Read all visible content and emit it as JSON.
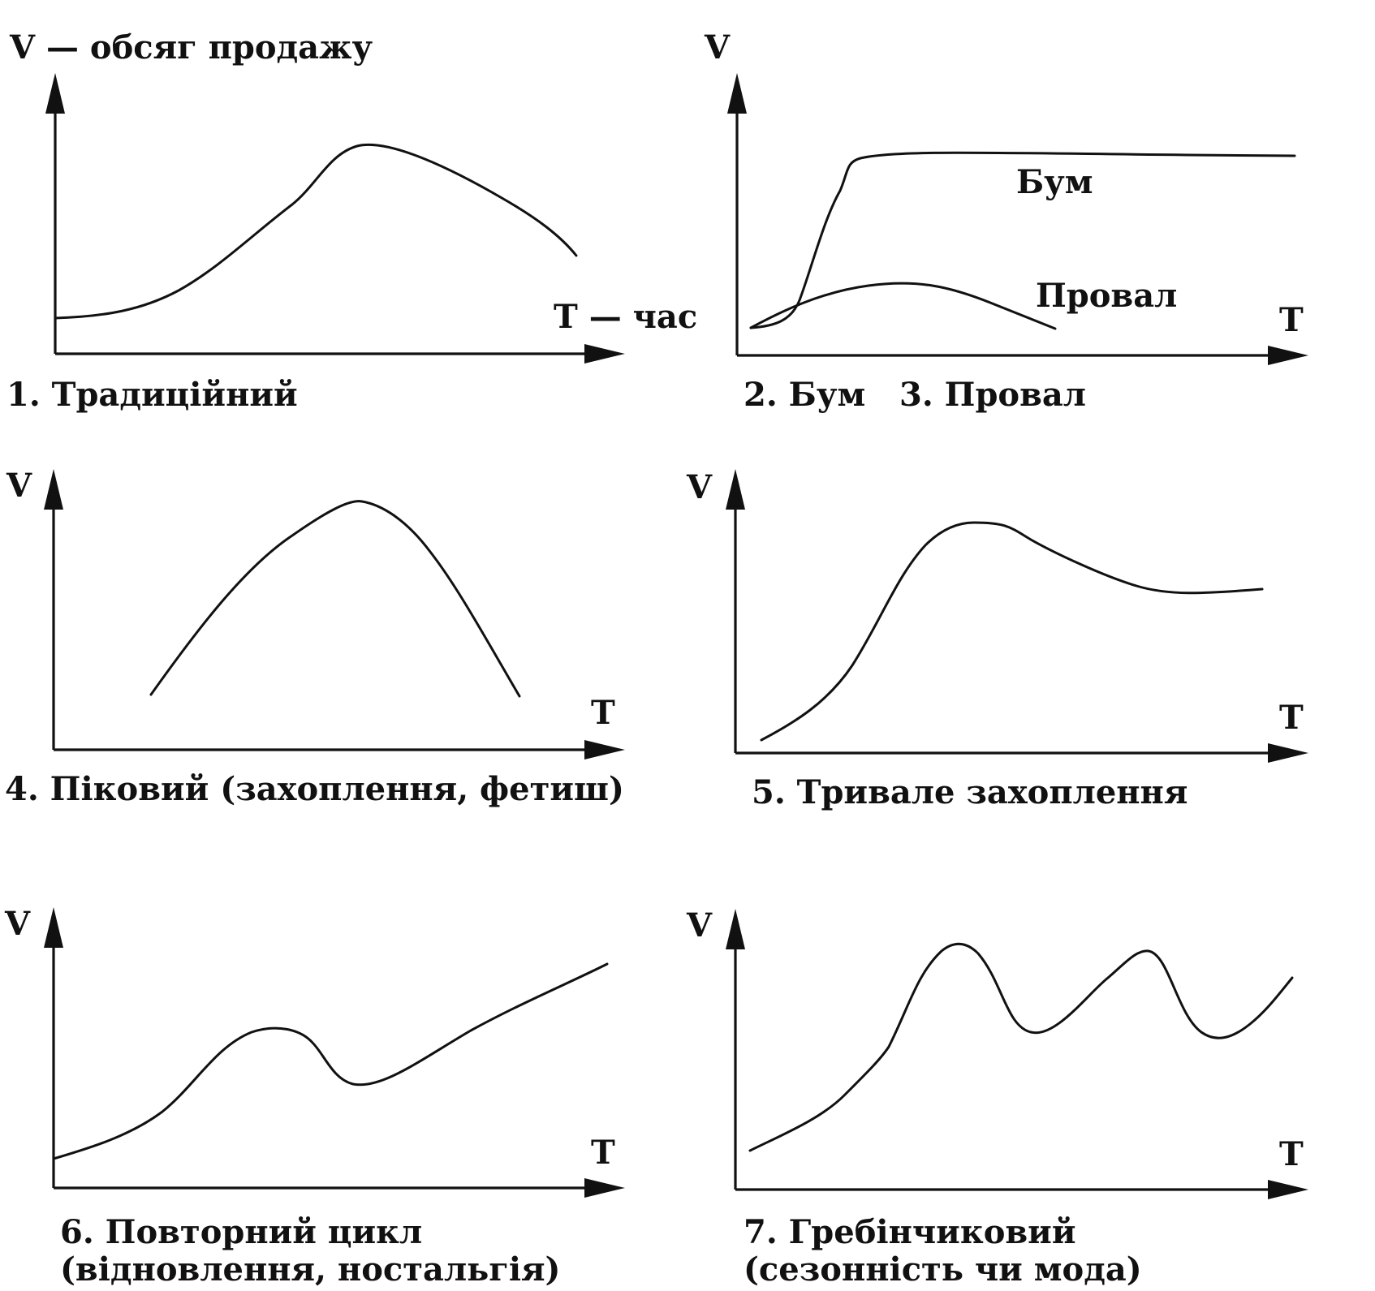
{
  "panels": [
    {
      "id": "traditional",
      "y_label": "V — обсяг продажу",
      "x_label": "T — час",
      "caption": [
        "1. Традиційний"
      ],
      "curves": [
        {
          "name": "traditional-curve"
        }
      ]
    },
    {
      "id": "boom-flop",
      "y_label": "V",
      "x_label": "T",
      "caption": [
        "2. Бум   3. Провал"
      ],
      "curves": [
        {
          "name": "boom-curve",
          "label": "Бум"
        },
        {
          "name": "flop-curve",
          "label": "Провал"
        }
      ]
    },
    {
      "id": "peak",
      "y_label": "V",
      "x_label": "T",
      "caption": [
        "4. Піковий (захоплення, фетиш)"
      ],
      "curves": [
        {
          "name": "peak-curve"
        }
      ]
    },
    {
      "id": "long-fad",
      "y_label": "V",
      "x_label": "T",
      "caption": [
        "5. Тривале захоплення"
      ],
      "curves": [
        {
          "name": "long-fad-curve"
        }
      ]
    },
    {
      "id": "recycle",
      "y_label": "V",
      "x_label": "T",
      "caption": [
        "6. Повторний цикл",
        "(відновлення, ностальгія)"
      ],
      "curves": [
        {
          "name": "recycle-curve"
        }
      ]
    },
    {
      "id": "scalloped",
      "y_label": "V",
      "x_label": "T",
      "caption": [
        "7. Гребінчиковий",
        "(сезонність чи мода)"
      ],
      "curves": [
        {
          "name": "scalloped-curve"
        }
      ]
    }
  ]
}
